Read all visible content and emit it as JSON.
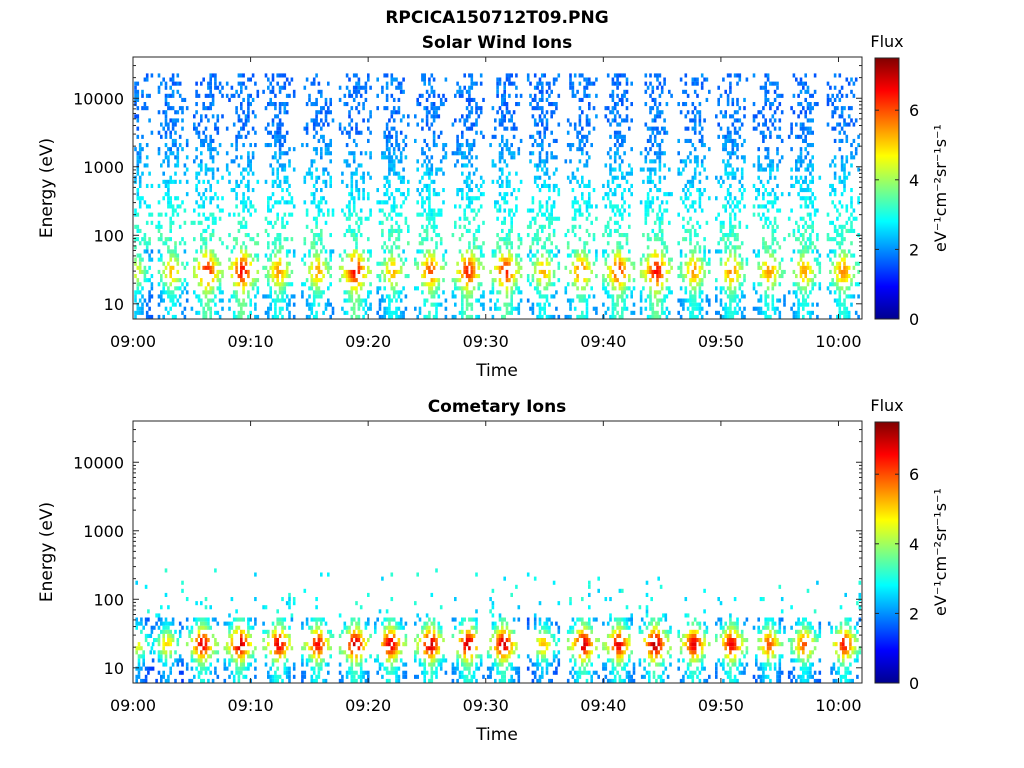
{
  "figure": {
    "title": "RPCICA150712T09.PNG"
  },
  "chart_data": [
    {
      "type": "heatmap",
      "title": "Solar Wind Ions",
      "xlabel": "Time",
      "ylabel": "Energy (eV)",
      "xlim": [
        "09:00",
        "10:02"
      ],
      "ylim": [
        6,
        40000
      ],
      "yscale": "log",
      "x_ticks": [
        "09:00",
        "09:10",
        "09:20",
        "09:30",
        "09:40",
        "09:50",
        "10:00"
      ],
      "y_ticks": [
        "10",
        "100",
        "1000",
        "10000"
      ],
      "colorbar": {
        "label": "Flux",
        "units": "eV⁻¹cm⁻²sr⁻¹s⁻¹",
        "range": [
          0,
          7.5
        ],
        "ticks": [
          "0",
          "2",
          "4",
          "6"
        ],
        "colormap": "jet"
      },
      "scan_times_min": [
        0.2,
        3.2,
        6.2,
        9.2,
        12.3,
        15.6,
        18.8,
        22.0,
        25.2,
        28.4,
        31.6,
        34.8,
        38.0,
        41.2,
        44.4,
        47.6,
        50.8,
        54.0,
        57.0,
        60.3
      ],
      "scan_peak_flux": [
        4.5,
        5.2,
        6.4,
        6.6,
        5.5,
        5.4,
        6.6,
        5.3,
        6.0,
        6.4,
        6.4,
        5.3,
        5.8,
        6.2,
        6.6,
        5.5,
        5.6,
        5.5,
        5.4,
        5.6
      ],
      "peak_energy_eV": 30,
      "max_energy_eV": 15000,
      "grid": false
    },
    {
      "type": "heatmap",
      "title": "Cometary Ions",
      "xlabel": "Time",
      "ylabel": "Energy (eV)",
      "xlim": [
        "09:00",
        "10:02"
      ],
      "ylim": [
        6,
        40000
      ],
      "yscale": "log",
      "x_ticks": [
        "09:00",
        "09:10",
        "09:20",
        "09:30",
        "09:40",
        "09:50",
        "10:00"
      ],
      "y_ticks": [
        "10",
        "100",
        "1000",
        "10000"
      ],
      "colorbar": {
        "label": "Flux",
        "units": "eV⁻¹cm⁻²sr⁻¹s⁻¹",
        "range": [
          0,
          7.5
        ],
        "ticks": [
          "0",
          "2",
          "4",
          "6"
        ],
        "colormap": "jet"
      },
      "scan_times_min": [
        0.3,
        2.8,
        5.8,
        9.0,
        12.3,
        15.6,
        18.8,
        21.8,
        25.2,
        28.4,
        31.4,
        34.8,
        38.2,
        41.2,
        44.3,
        47.6,
        50.8,
        54.0,
        57.0,
        60.4
      ],
      "scan_peak_flux": [
        4.6,
        5.0,
        6.8,
        7.0,
        6.8,
        6.6,
        7.0,
        6.9,
        7.0,
        7.0,
        7.0,
        5.2,
        7.0,
        6.8,
        7.2,
        6.8,
        6.7,
        6.0,
        6.0,
        6.5
      ],
      "peak_energy_eV": 22,
      "max_energy_eV": 300,
      "grid": false
    }
  ]
}
